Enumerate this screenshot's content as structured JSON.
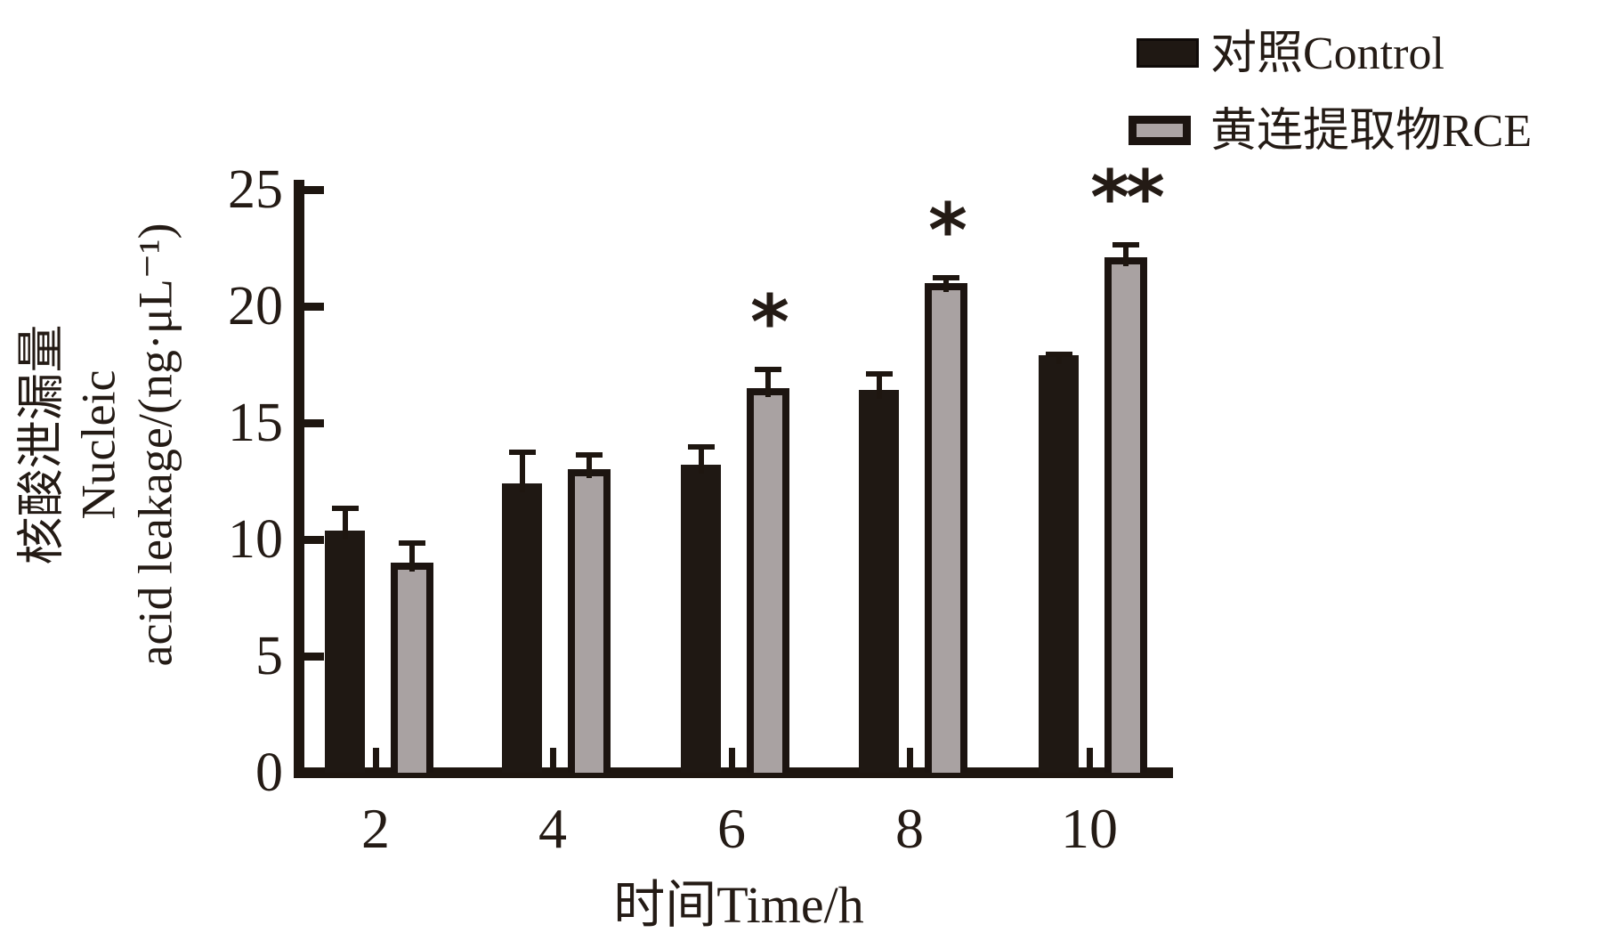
{
  "chart_data": {
    "type": "bar",
    "title": "",
    "categories": [
      "2",
      "4",
      "6",
      "8",
      "10"
    ],
    "xlabel": "时间Time/h",
    "ylabel_lines": [
      "核酸泄漏量",
      "Nucleic",
      "acid leakage/(ng·μL⁻¹)"
    ],
    "ylim": [
      0,
      25
    ],
    "yticks": [
      0,
      5,
      10,
      15,
      20,
      25
    ],
    "grid": false,
    "legend_position": "top-right",
    "series": [
      {
        "name": "对照Control",
        "color": "#1f1813",
        "values": [
          10.4,
          12.4,
          13.2,
          16.4,
          17.9
        ],
        "errors_plus": [
          1.05,
          1.45,
          0.9,
          0.8,
          0.15
        ]
      },
      {
        "name": "黄连提取物RCE",
        "color": "#a9a2a2",
        "values": [
          9.0,
          13.0,
          16.5,
          21.0,
          22.1
        ],
        "errors_plus": [
          0.95,
          0.75,
          0.9,
          0.35,
          0.65
        ]
      }
    ],
    "annotations": [
      {
        "category": "6",
        "series_index": 1,
        "text": "*"
      },
      {
        "category": "8",
        "series_index": 1,
        "text": "*"
      },
      {
        "category": "10",
        "series_index": 1,
        "text": "**"
      }
    ]
  }
}
